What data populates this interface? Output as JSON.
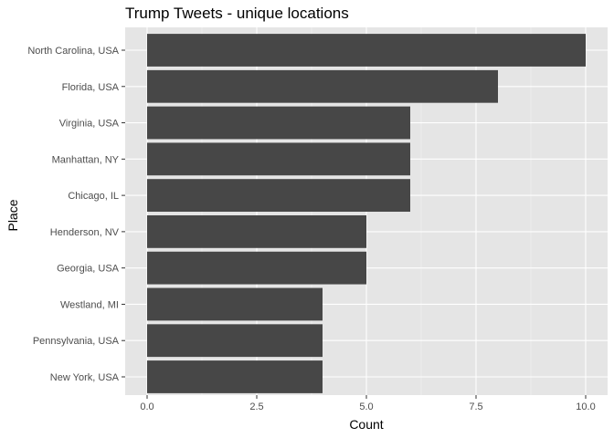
{
  "chart_data": {
    "type": "bar",
    "orientation": "horizontal",
    "title": "Trump Tweets - unique locations",
    "xlabel": "Count",
    "ylabel": "Place",
    "categories": [
      "North Carolina, USA",
      "Florida, USA",
      "Virginia, USA",
      "Manhattan, NY",
      "Chicago, IL",
      "Henderson, NV",
      "Georgia, USA",
      "Westland, MI",
      "Pennsylvania, USA",
      "New York, USA"
    ],
    "values": [
      10,
      8,
      6,
      6,
      6,
      5,
      5,
      4,
      4,
      4
    ],
    "xlim": [
      0,
      10
    ],
    "xticks": [
      "0.0",
      "2.5",
      "5.0",
      "7.5",
      "10.0"
    ],
    "xtick_values": [
      0,
      2.5,
      5,
      7.5,
      10
    ],
    "grid": true,
    "legend": "none",
    "colors": {
      "bar": "#474747",
      "panel": "#e5e5e5",
      "grid_major": "#ffffff",
      "grid_minor": "#f2f2f2"
    }
  }
}
